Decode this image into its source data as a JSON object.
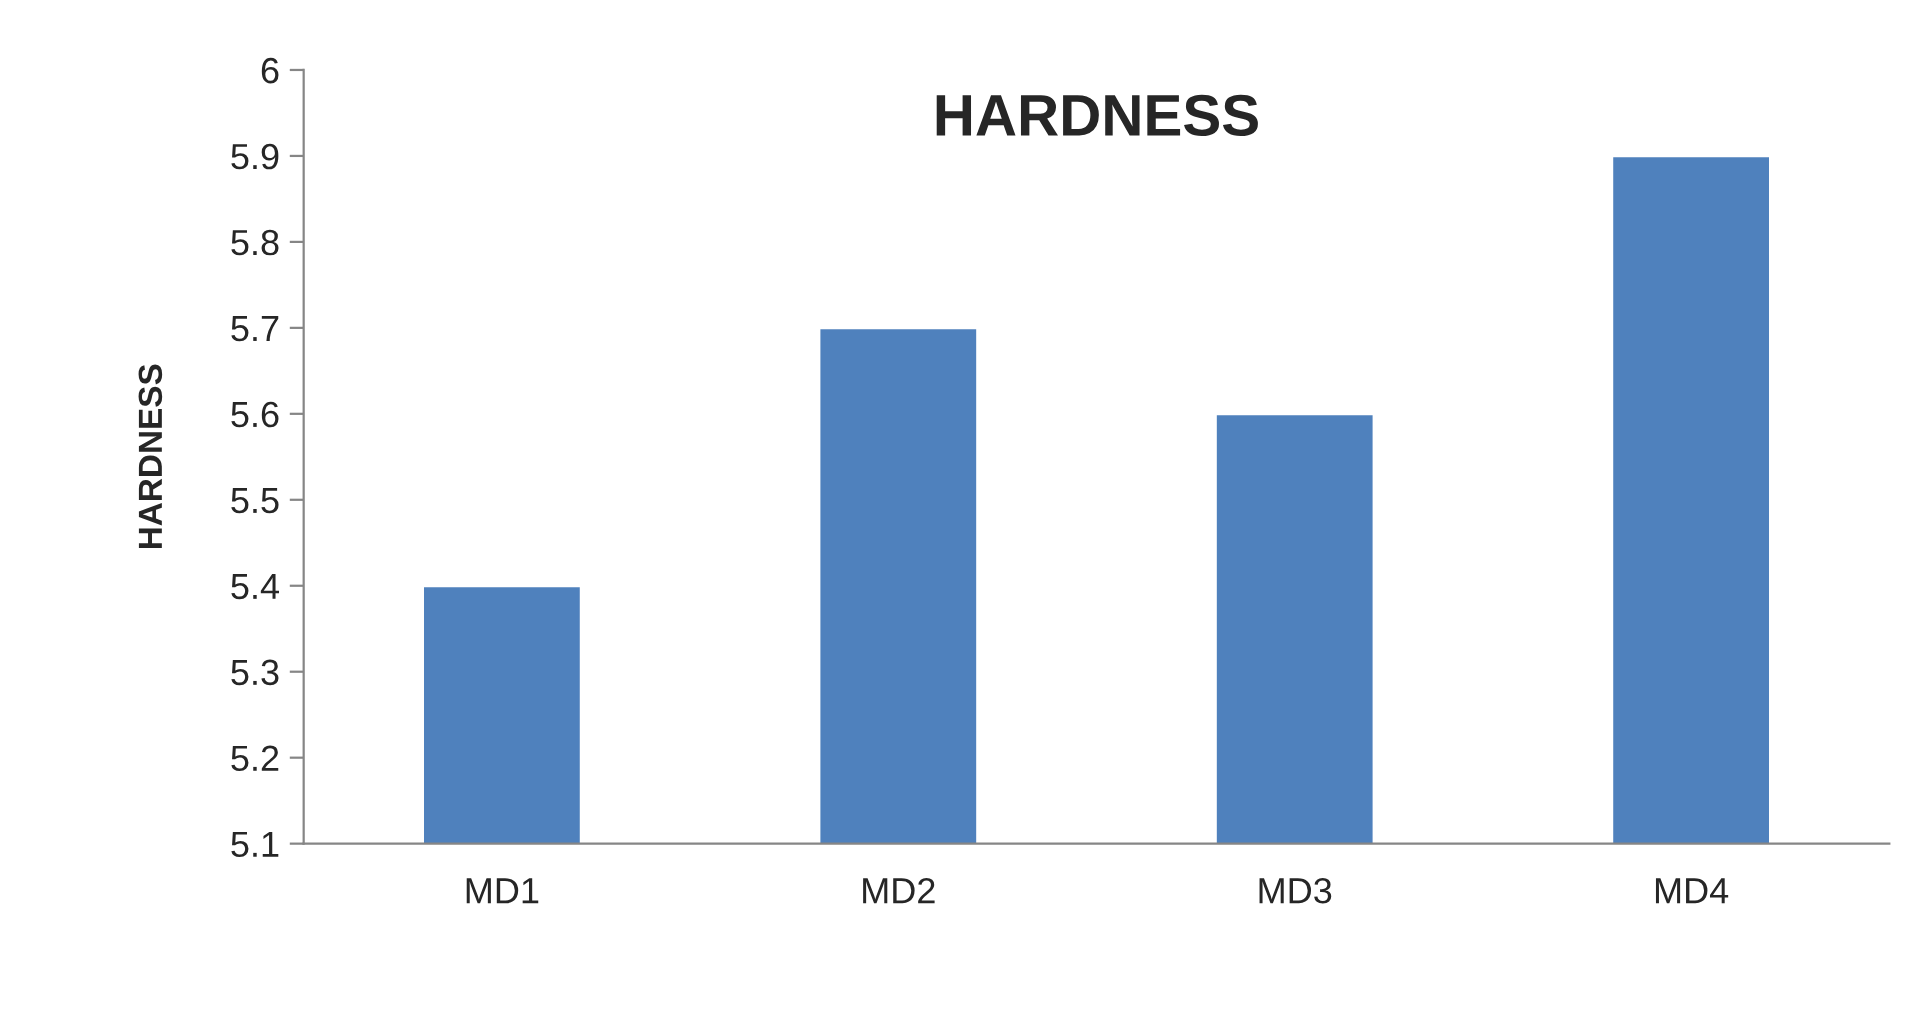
{
  "chart_data": {
    "type": "bar",
    "title": "HARDNESS",
    "ylabel": "HARDNESS",
    "categories": [
      "MD1",
      "MD2",
      "MD3",
      "MD4"
    ],
    "values": [
      5.4,
      5.7,
      5.6,
      5.9
    ],
    "color": "#4f81bd",
    "ylim": [
      5.1,
      6
    ],
    "yticks": [
      5.1,
      5.2,
      5.3,
      5.4,
      5.5,
      5.6,
      5.7,
      5.8,
      5.9,
      6
    ],
    "grid": false,
    "legend": false
  }
}
